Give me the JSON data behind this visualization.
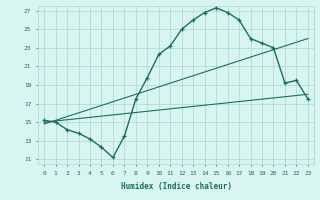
{
  "xlabel": "Humidex (Indice chaleur)",
  "bg_color": "#d8f5f0",
  "grid_color": "#a8d8d0",
  "line_color": "#1a6e64",
  "xlim": [
    -0.5,
    23.5
  ],
  "ylim": [
    10.5,
    27.5
  ],
  "yticks": [
    11,
    13,
    15,
    17,
    19,
    21,
    23,
    25,
    27
  ],
  "xticks": [
    0,
    1,
    2,
    3,
    4,
    5,
    6,
    7,
    8,
    9,
    10,
    11,
    12,
    13,
    14,
    15,
    16,
    17,
    18,
    19,
    20,
    21,
    22,
    23
  ],
  "curve1_x": [
    0,
    1,
    2,
    3,
    4,
    5,
    6,
    7,
    8,
    9,
    10,
    11,
    12,
    13,
    14,
    15,
    16,
    17,
    18,
    19,
    20,
    21,
    22,
    23
  ],
  "curve1_y": [
    15.2,
    15.0,
    14.2,
    13.8,
    13.2,
    12.3,
    11.2,
    13.5,
    17.5,
    19.8,
    22.3,
    23.2,
    25.0,
    26.0,
    26.8,
    27.3,
    26.8,
    26.0,
    24.0,
    23.5,
    23.0,
    19.2,
    19.5,
    17.5
  ],
  "line1_x": [
    0,
    23
  ],
  "line1_y": [
    15.0,
    18.0
  ],
  "line2_x": [
    0,
    23
  ],
  "line2_y": [
    14.8,
    24.0
  ]
}
